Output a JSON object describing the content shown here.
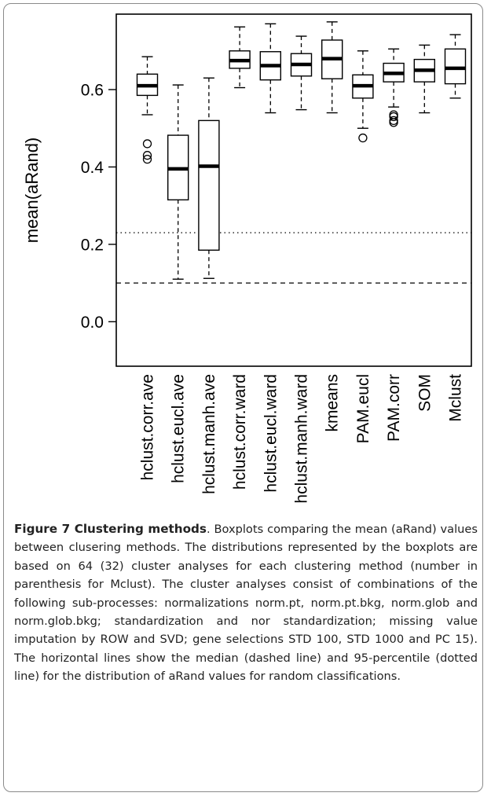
{
  "chart_data": {
    "type": "boxplot",
    "ylabel": "mean(aRand)",
    "ylim": [
      -0.115,
      0.795
    ],
    "yticks": [
      "0.0",
      "0.2",
      "0.4",
      "0.6"
    ],
    "yticks_values": [
      0.0,
      0.2,
      0.4,
      0.6
    ],
    "categories": [
      "hclust.corr.ave",
      "hclust.eucl.ave",
      "hclust.manh.ave",
      "hclust.corr.ward",
      "hclust.eucl.ward",
      "hclust.manh.ward",
      "kmeans",
      "PAM.eucl",
      "PAM.corr",
      "SOM",
      "Mclust"
    ],
    "boxes": [
      {
        "lower_whisker": 0.535,
        "q1": 0.585,
        "median": 0.61,
        "q3": 0.64,
        "upper_whisker": 0.685,
        "outliers": [
          0.46,
          0.43,
          0.42
        ]
      },
      {
        "lower_whisker": 0.11,
        "q1": 0.315,
        "median": 0.395,
        "q3": 0.482,
        "upper_whisker": 0.612,
        "outliers": []
      },
      {
        "lower_whisker": 0.112,
        "q1": 0.185,
        "median": 0.402,
        "q3": 0.52,
        "upper_whisker": 0.63,
        "outliers": []
      },
      {
        "lower_whisker": 0.605,
        "q1": 0.655,
        "median": 0.675,
        "q3": 0.7,
        "upper_whisker": 0.762,
        "outliers": []
      },
      {
        "lower_whisker": 0.54,
        "q1": 0.625,
        "median": 0.662,
        "q3": 0.698,
        "upper_whisker": 0.77,
        "outliers": []
      },
      {
        "lower_whisker": 0.548,
        "q1": 0.635,
        "median": 0.665,
        "q3": 0.693,
        "upper_whisker": 0.738,
        "outliers": []
      },
      {
        "lower_whisker": 0.54,
        "q1": 0.628,
        "median": 0.68,
        "q3": 0.728,
        "upper_whisker": 0.775,
        "outliers": []
      },
      {
        "lower_whisker": 0.5,
        "q1": 0.578,
        "median": 0.61,
        "q3": 0.638,
        "upper_whisker": 0.7,
        "outliers": [
          0.475
        ]
      },
      {
        "lower_whisker": 0.555,
        "q1": 0.62,
        "median": 0.642,
        "q3": 0.668,
        "upper_whisker": 0.705,
        "outliers": [
          0.535,
          0.53,
          0.52,
          0.515
        ]
      },
      {
        "lower_whisker": 0.54,
        "q1": 0.62,
        "median": 0.65,
        "q3": 0.678,
        "upper_whisker": 0.715,
        "outliers": []
      },
      {
        "lower_whisker": 0.578,
        "q1": 0.615,
        "median": 0.655,
        "q3": 0.705,
        "upper_whisker": 0.742,
        "outliers": []
      }
    ],
    "reference_lines": [
      {
        "y": 0.23,
        "style": "dotted"
      },
      {
        "y": 0.1,
        "style": "dashed"
      }
    ]
  },
  "caption": {
    "label": "Figure 7 Clustering methods",
    "text": ". Boxplots comparing the mean (aRand) values between clusering methods. The distributions represented by the boxplots are based on 64 (32) cluster analyses for each clustering method (number in parenthesis for Mclust). The cluster analyses consist of combinations of the following sub-processes: normalizations norm.pt, norm.pt.bkg, norm.glob and norm.glob.bkg; standardization and nor standardization; missing value imputation by ROW and SVD; gene selections STD 100, STD 1000 and PC 15). The horizontal lines show the median (dashed line) and 95-percentile (dotted line) for the distribution of aRand values for random classifications."
  }
}
